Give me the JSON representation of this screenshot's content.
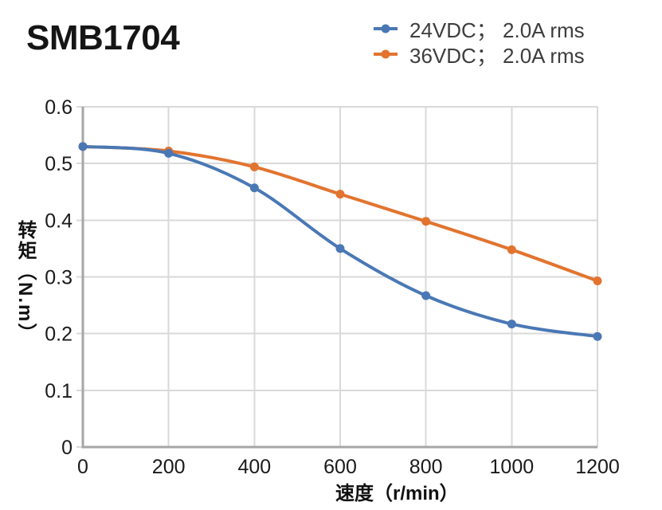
{
  "title": "SMB1704",
  "legend": {
    "items": [
      {
        "label": "24VDC； 2.0A rms",
        "color": "#4a78b5"
      },
      {
        "label": "36VDC； 2.0A rms",
        "color": "#e2742f"
      }
    ]
  },
  "axes": {
    "x_title": "速度（r/min）",
    "y_title": "转矩（N.m）"
  },
  "chart_data": {
    "type": "line",
    "title": "SMB1704",
    "x": [
      0,
      200,
      400,
      600,
      800,
      1000,
      1200
    ],
    "series": [
      {
        "name": "24VDC； 2.0A rms",
        "color": "#4a78b5",
        "values": [
          0.53,
          0.518,
          0.457,
          0.35,
          0.267,
          0.217,
          0.195
        ]
      },
      {
        "name": "36VDC； 2.0A rms",
        "color": "#e2742f",
        "values": [
          0.53,
          0.522,
          0.494,
          0.446,
          0.398,
          0.348,
          0.293
        ]
      }
    ],
    "xlabel": "速度（r/min）",
    "ylabel": "转矩（N.m）",
    "xlim": [
      0,
      1200
    ],
    "ylim": [
      0,
      0.6
    ],
    "x_ticks": [
      0,
      200,
      400,
      600,
      800,
      1000,
      1200
    ],
    "x_tick_labels": [
      "0",
      "200",
      "400",
      "600",
      "800",
      "1000",
      "1200"
    ],
    "y_ticks": [
      0,
      0.1,
      0.2,
      0.3,
      0.4,
      0.5,
      0.6
    ],
    "y_tick_labels": [
      "0",
      "0.1",
      "0.2",
      "0.3",
      "0.4",
      "0.5",
      "0.6"
    ],
    "grid": true,
    "legend_position": "top-right",
    "colors": {
      "grid": "#d9d9d9",
      "axis": "#a6a6a6",
      "tick_text": "#1a1a1a"
    }
  }
}
